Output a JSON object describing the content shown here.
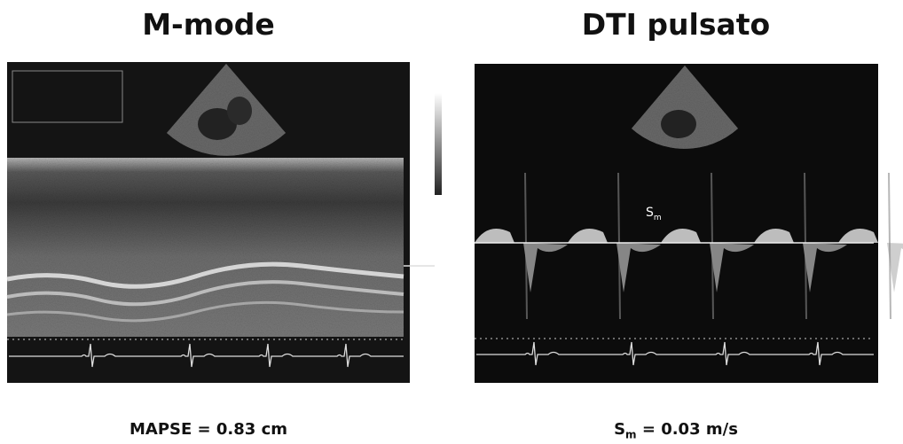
{
  "panels": [
    {
      "title": "M-mode",
      "caption": "MAPSE = 0.83 cm"
    },
    {
      "title": "DTI pulsato",
      "caption": {
        "symbol": "S",
        "subscript": "m",
        "text": "= 0.03 m/s"
      },
      "image_label": {
        "symbol": "S",
        "subscript": "m"
      }
    }
  ]
}
